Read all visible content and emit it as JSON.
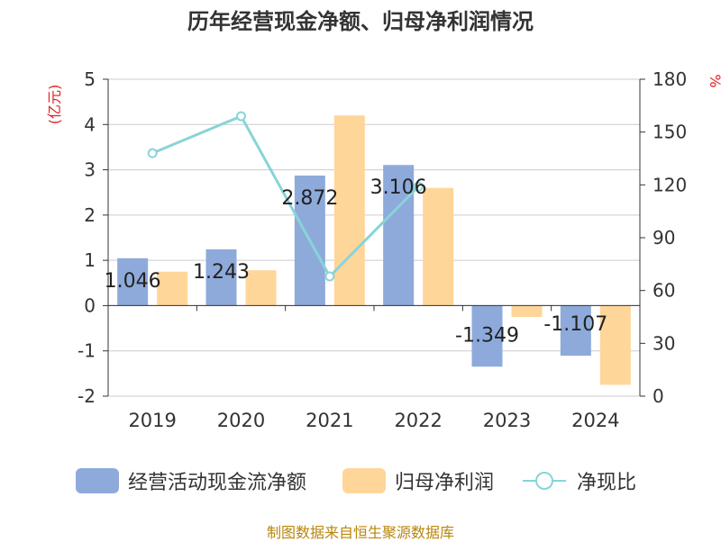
{
  "title": "历年经营现金净额、归母净利润情况",
  "chart_data": {
    "type": "bar",
    "categories": [
      "2019",
      "2020",
      "2021",
      "2022",
      "2023",
      "2024"
    ],
    "series": [
      {
        "name": "经营活动现金流净额",
        "type": "bar",
        "axis": "left",
        "color": "#8eaadb",
        "values": [
          1.046,
          1.243,
          2.872,
          3.106,
          -1.349,
          -1.107
        ],
        "labels": [
          "1.046",
          "1.243",
          "2.872",
          "3.106",
          "-1.349",
          "-1.107"
        ]
      },
      {
        "name": "归母净利润",
        "type": "bar",
        "axis": "left",
        "color": "#ffd699",
        "values": [
          0.75,
          0.78,
          4.2,
          2.6,
          -0.25,
          -1.75
        ]
      },
      {
        "name": "净现比",
        "type": "line",
        "axis": "right",
        "color": "#88d4d8",
        "values": [
          138,
          159,
          68,
          119,
          null,
          null
        ]
      }
    ],
    "left_axis": {
      "label": "(亿元)",
      "ylim": [
        -2,
        5
      ],
      "ticks": [
        -2,
        -1,
        0,
        1,
        2,
        3,
        4,
        5
      ]
    },
    "right_axis": {
      "label": "%",
      "ylim": [
        0,
        180
      ],
      "ticks": [
        0,
        30,
        60,
        90,
        120,
        150,
        180
      ]
    },
    "grid": true,
    "legend_position": "bottom"
  },
  "source": "制图数据来自恒生聚源数据库"
}
